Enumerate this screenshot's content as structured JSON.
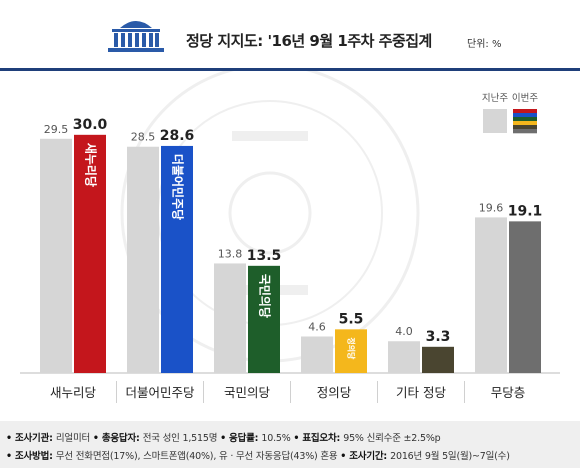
{
  "header": {
    "title": "정당 지지도: '16년 9월 1주차 주중집계",
    "unit": "단위: %"
  },
  "colors": {
    "header_rule": "#1f3f7a",
    "prev_bar": "#d6d6d6",
    "new_bar_default": "#6e6e6e",
    "saenuri": "#c4161c",
    "minju": "#1a52c8",
    "kukmin": "#1e5e2a",
    "jeongui": "#f4b71c",
    "etc": "#4a4530",
    "independent": "#6e6e6e"
  },
  "chart_data": {
    "type": "bar",
    "categories": [
      "새누리당",
      "더불어민주당",
      "국민의당",
      "정의당",
      "기타 정당",
      "무당층"
    ],
    "series": [
      {
        "name": "지난주",
        "values": [
          29.5,
          28.5,
          13.8,
          4.6,
          4.0,
          19.6
        ]
      },
      {
        "name": "이번주",
        "values": [
          30.0,
          28.6,
          13.5,
          5.5,
          3.3,
          19.1
        ]
      }
    ],
    "series_colors": {
      "지난주": "#d6d6d6",
      "이번주": [
        "#c4161c",
        "#1a52c8",
        "#1e5e2a",
        "#f4b71c",
        "#4a4530",
        "#6e6e6e"
      ]
    },
    "bar_inner_labels": [
      "새누리당",
      "더불어민주당",
      "국민의당",
      "정의당",
      "",
      ""
    ],
    "ylim": [
      0,
      33
    ],
    "legend": {
      "placement": "top-right",
      "entries": [
        "지난주",
        "이번주"
      ]
    },
    "grid": false,
    "title": "정당 지지도: '16년 9월 1주차 주중집계",
    "xlabel": "",
    "ylabel": ""
  },
  "footer": {
    "line1": [
      {
        "label": "조사기관",
        "value": "리얼미터"
      },
      {
        "label": "총응답자",
        "value": "전국 성인 1,515명"
      },
      {
        "label": "응답률",
        "value": "10.5%"
      },
      {
        "label": "표집오차",
        "value": "95% 신뢰수준 ±2.5%p"
      }
    ],
    "line2": [
      {
        "label": "조사방법",
        "value": "무선 전화면접(17%), 스마트폰앱(40%), 유 · 무선 자동응답(43%) 혼용"
      },
      {
        "label": "조사기간",
        "value": "2016년 9월 5일(월)~7일(수)"
      }
    ]
  }
}
